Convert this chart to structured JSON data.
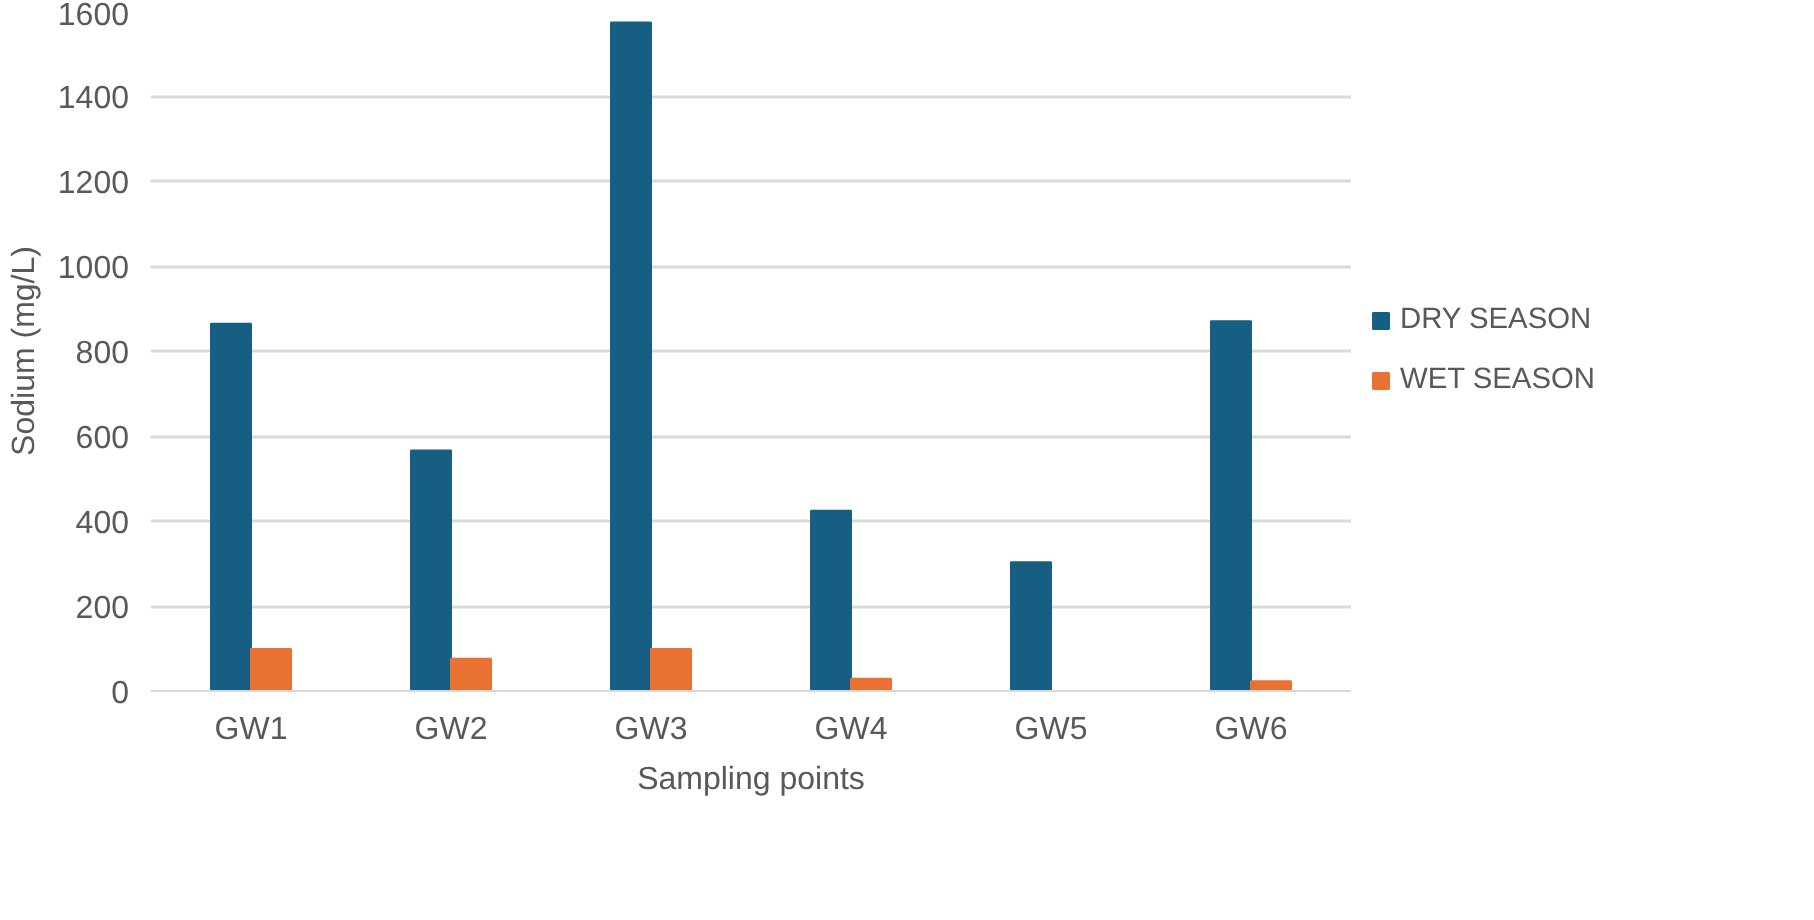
{
  "chart_data": {
    "type": "bar",
    "xlabel": "Sampling points",
    "ylabel": "Sodium (mg/L)",
    "categories": [
      "GW1",
      "GW2",
      "GW3",
      "GW4",
      "GW5",
      "GW6"
    ],
    "series": [
      {
        "name": "DRY SEASON",
        "color": "#165f82",
        "values": [
          864,
          566,
          1573,
          424,
          303,
          870
        ]
      },
      {
        "name": "WET SEASON",
        "color": "#e97132",
        "values": [
          99,
          76,
          99,
          29,
          null,
          23
        ]
      }
    ],
    "ylim": [
      0,
      1600
    ],
    "yticks": [
      0,
      200,
      400,
      600,
      800,
      1000,
      1200,
      1400,
      1600
    ],
    "grid": "y",
    "legend": "right"
  }
}
